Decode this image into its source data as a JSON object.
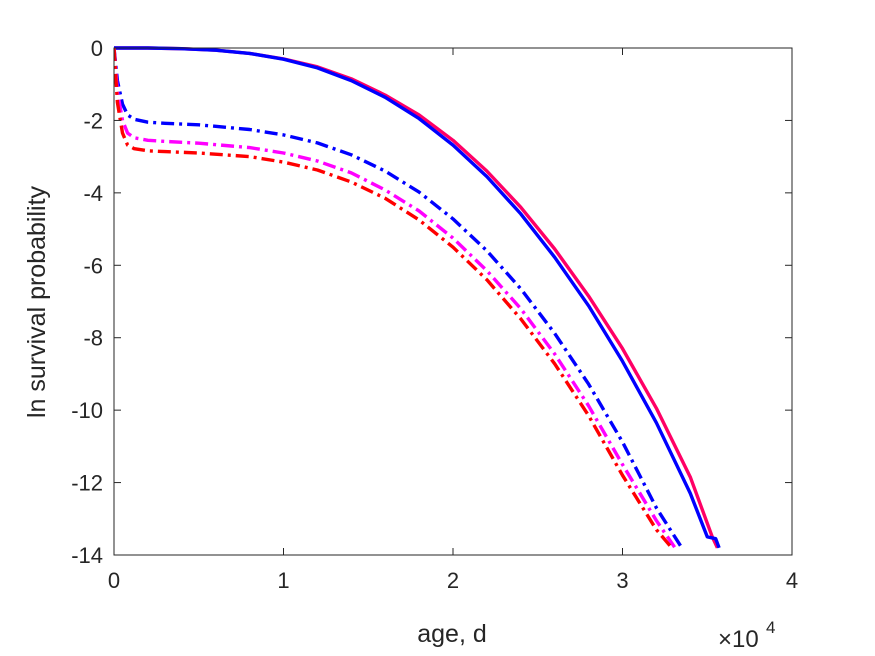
{
  "chart_data": {
    "type": "line",
    "xlabel": "age, d",
    "ylabel": "ln survival probability",
    "x_multiplier": "×10^4",
    "x_multiplier_base": "×10",
    "x_multiplier_exp": "4",
    "xlim": [
      0,
      40000
    ],
    "ylim": [
      -14,
      0
    ],
    "xticks": [
      0,
      10000,
      20000,
      30000,
      40000
    ],
    "xtick_labels": [
      "0",
      "1",
      "2",
      "3",
      "4"
    ],
    "yticks": [
      0,
      -2,
      -4,
      -6,
      -8,
      -10,
      -12,
      -14
    ],
    "ytick_labels": [
      "0",
      "-2",
      "-4",
      "-6",
      "-8",
      "-10",
      "-12",
      "-14"
    ],
    "grid": false,
    "legend": "none",
    "series": [
      {
        "color": "#ff0066",
        "style": "solid",
        "x": [
          0,
          2000,
          4000,
          6000,
          8000,
          10000,
          12000,
          14000,
          16000,
          18000,
          20000,
          22000,
          24000,
          26000,
          28000,
          30000,
          32000,
          34000,
          35300,
          35600
        ],
        "y": [
          0,
          0,
          -0.02,
          -0.06,
          -0.15,
          -0.3,
          -0.52,
          -0.85,
          -1.3,
          -1.85,
          -2.55,
          -3.4,
          -4.4,
          -5.55,
          -6.85,
          -8.3,
          -9.95,
          -11.85,
          -13.5,
          -13.8
        ]
      },
      {
        "color": "#0000ff",
        "style": "solid",
        "x": [
          0,
          2000,
          4000,
          6000,
          8000,
          10000,
          12000,
          14000,
          16000,
          18000,
          20000,
          22000,
          24000,
          26000,
          28000,
          30000,
          32000,
          34000,
          35000,
          35500,
          35700
        ],
        "y": [
          0,
          0,
          -0.02,
          -0.06,
          -0.15,
          -0.31,
          -0.55,
          -0.9,
          -1.36,
          -1.95,
          -2.68,
          -3.55,
          -4.58,
          -5.78,
          -7.12,
          -8.65,
          -10.35,
          -12.3,
          -13.5,
          -13.55,
          -13.8
        ]
      },
      {
        "color": "#0000ff",
        "style": "dashdot",
        "x": [
          0,
          200,
          500,
          800,
          1200,
          2000,
          3000,
          5000,
          8000,
          10000,
          12000,
          14000,
          16000,
          18000,
          20000,
          22000,
          24000,
          26000,
          28000,
          30000,
          32000,
          33500
        ],
        "y": [
          0,
          -0.9,
          -1.55,
          -1.85,
          -1.97,
          -2.05,
          -2.08,
          -2.12,
          -2.25,
          -2.4,
          -2.62,
          -2.95,
          -3.4,
          -3.98,
          -4.72,
          -5.6,
          -6.65,
          -7.88,
          -9.28,
          -10.88,
          -12.7,
          -13.8
        ]
      },
      {
        "color": "#ff00ff",
        "style": "dashdot",
        "x": [
          0,
          200,
          500,
          800,
          1200,
          2000,
          3000,
          5000,
          8000,
          10000,
          12000,
          14000,
          16000,
          18000,
          20000,
          22000,
          24000,
          26000,
          28000,
          30000,
          32000,
          33100
        ],
        "y": [
          0,
          -1.2,
          -2.0,
          -2.35,
          -2.48,
          -2.55,
          -2.58,
          -2.63,
          -2.75,
          -2.9,
          -3.12,
          -3.45,
          -3.92,
          -4.5,
          -5.25,
          -6.15,
          -7.2,
          -8.45,
          -9.88,
          -11.5,
          -13.05,
          -13.8
        ]
      },
      {
        "color": "#ff0000",
        "style": "dashdot",
        "x": [
          0,
          200,
          500,
          800,
          1200,
          2000,
          3000,
          5000,
          8000,
          10000,
          12000,
          14000,
          16000,
          18000,
          20000,
          22000,
          24000,
          26000,
          28000,
          30000,
          32000,
          32900
        ],
        "y": [
          0,
          -1.5,
          -2.35,
          -2.68,
          -2.78,
          -2.84,
          -2.86,
          -2.9,
          -3.0,
          -3.15,
          -3.37,
          -3.7,
          -4.15,
          -4.75,
          -5.5,
          -6.4,
          -7.48,
          -8.72,
          -10.15,
          -11.8,
          -13.3,
          -13.8
        ]
      }
    ]
  }
}
